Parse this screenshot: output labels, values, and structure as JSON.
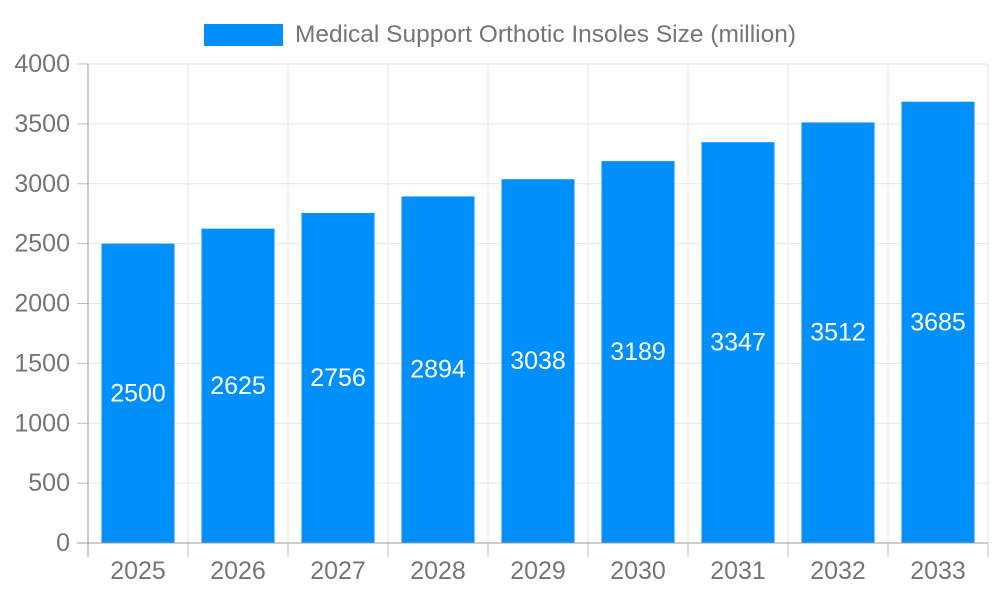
{
  "chart_data": {
    "type": "bar",
    "title": "Medical Support Orthotic Insoles Size (million)",
    "legend_position": "top",
    "categories": [
      "2025",
      "2026",
      "2027",
      "2028",
      "2029",
      "2030",
      "2031",
      "2032",
      "2033"
    ],
    "values": [
      2500,
      2625,
      2756,
      2894,
      3038,
      3189,
      3347,
      3512,
      3685
    ],
    "series": [
      {
        "name": "Medical Support Orthotic Insoles Size (million)",
        "values": [
          2500,
          2625,
          2756,
          2894,
          3038,
          3189,
          3347,
          3512,
          3685
        ]
      }
    ],
    "xlabel": "",
    "ylabel": "",
    "ylim": [
      0,
      4000
    ],
    "yticks": [
      0,
      500,
      1000,
      1500,
      2000,
      2500,
      3000,
      3500,
      4000
    ],
    "grid": true,
    "bar_value_labels_visible": true,
    "colors": {
      "bar": "#008FFB",
      "bar_value_label": "#FFFFFF",
      "axis_text": "#757575",
      "grid_line": "#E6E6E6",
      "axis_line": "#9E9E9E",
      "tick": "#BDBDBD",
      "background": "#FFFFFF"
    }
  }
}
